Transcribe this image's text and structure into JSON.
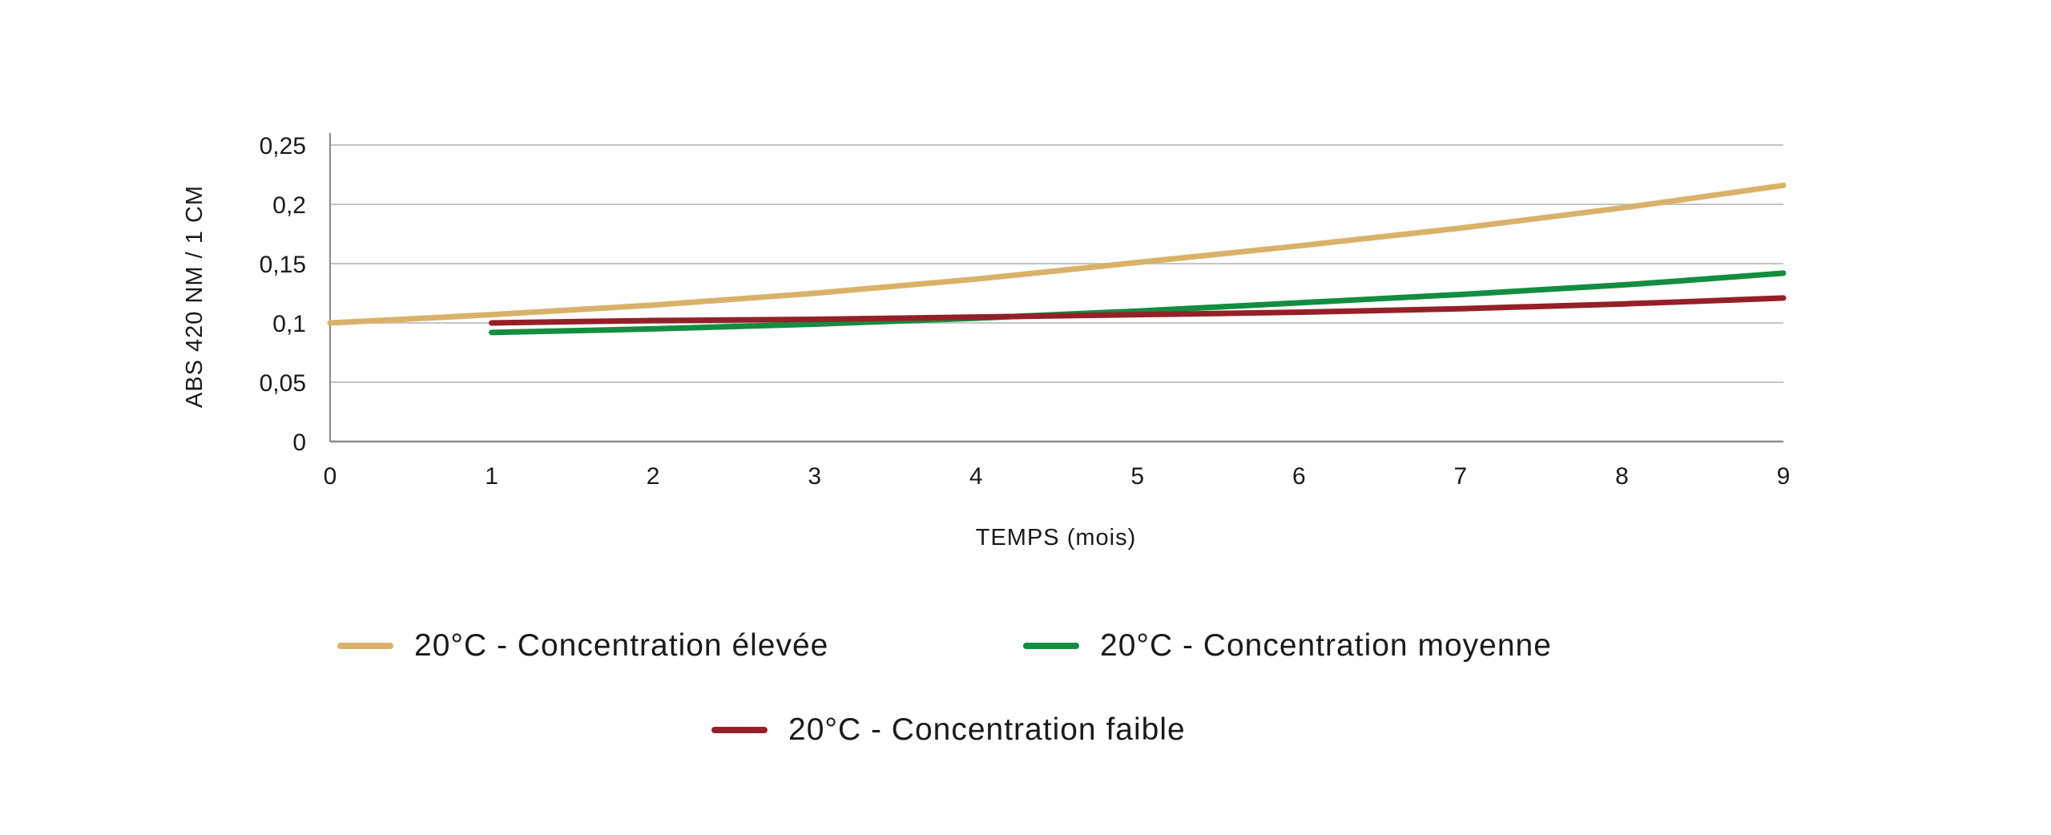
{
  "chart_data": {
    "type": "line",
    "title": "",
    "xlabel": "TEMPS (mois)",
    "ylabel": "ABS 420 NM / 1 CM",
    "xlim": [
      0,
      9
    ],
    "ylim": [
      0,
      0.25
    ],
    "x_ticks": [
      "0",
      "1",
      "2",
      "3",
      "4",
      "5",
      "6",
      "7",
      "8",
      "9"
    ],
    "y_ticks": [
      "0",
      "0,05",
      "0,1",
      "0,15",
      "0,2",
      "0,25"
    ],
    "y_tick_values": [
      0,
      0.05,
      0.1,
      0.15,
      0.2,
      0.25
    ],
    "grid": "horizontal",
    "legend_position": "bottom",
    "series": [
      {
        "name": "20°C - Concentration élevée",
        "color": "#d9b26a",
        "x": [
          0,
          1,
          2,
          3,
          4,
          5,
          6,
          7,
          8,
          9
        ],
        "y": [
          0.1,
          0.107,
          0.115,
          0.125,
          0.137,
          0.151,
          0.165,
          0.18,
          0.197,
          0.216
        ]
      },
      {
        "name": "20°C - Concentration moyenne",
        "color": "#138d3f",
        "x": [
          1,
          2,
          3,
          4,
          5,
          6,
          7,
          8,
          9
        ],
        "y": [
          0.092,
          0.095,
          0.099,
          0.104,
          0.11,
          0.117,
          0.124,
          0.132,
          0.142
        ]
      },
      {
        "name": "20°C - Concentration faible",
        "color": "#952028",
        "x": [
          1,
          2,
          3,
          4,
          5,
          6,
          7,
          8,
          9
        ],
        "y": [
          0.1,
          0.102,
          0.103,
          0.105,
          0.107,
          0.109,
          0.112,
          0.116,
          0.121
        ]
      }
    ]
  }
}
